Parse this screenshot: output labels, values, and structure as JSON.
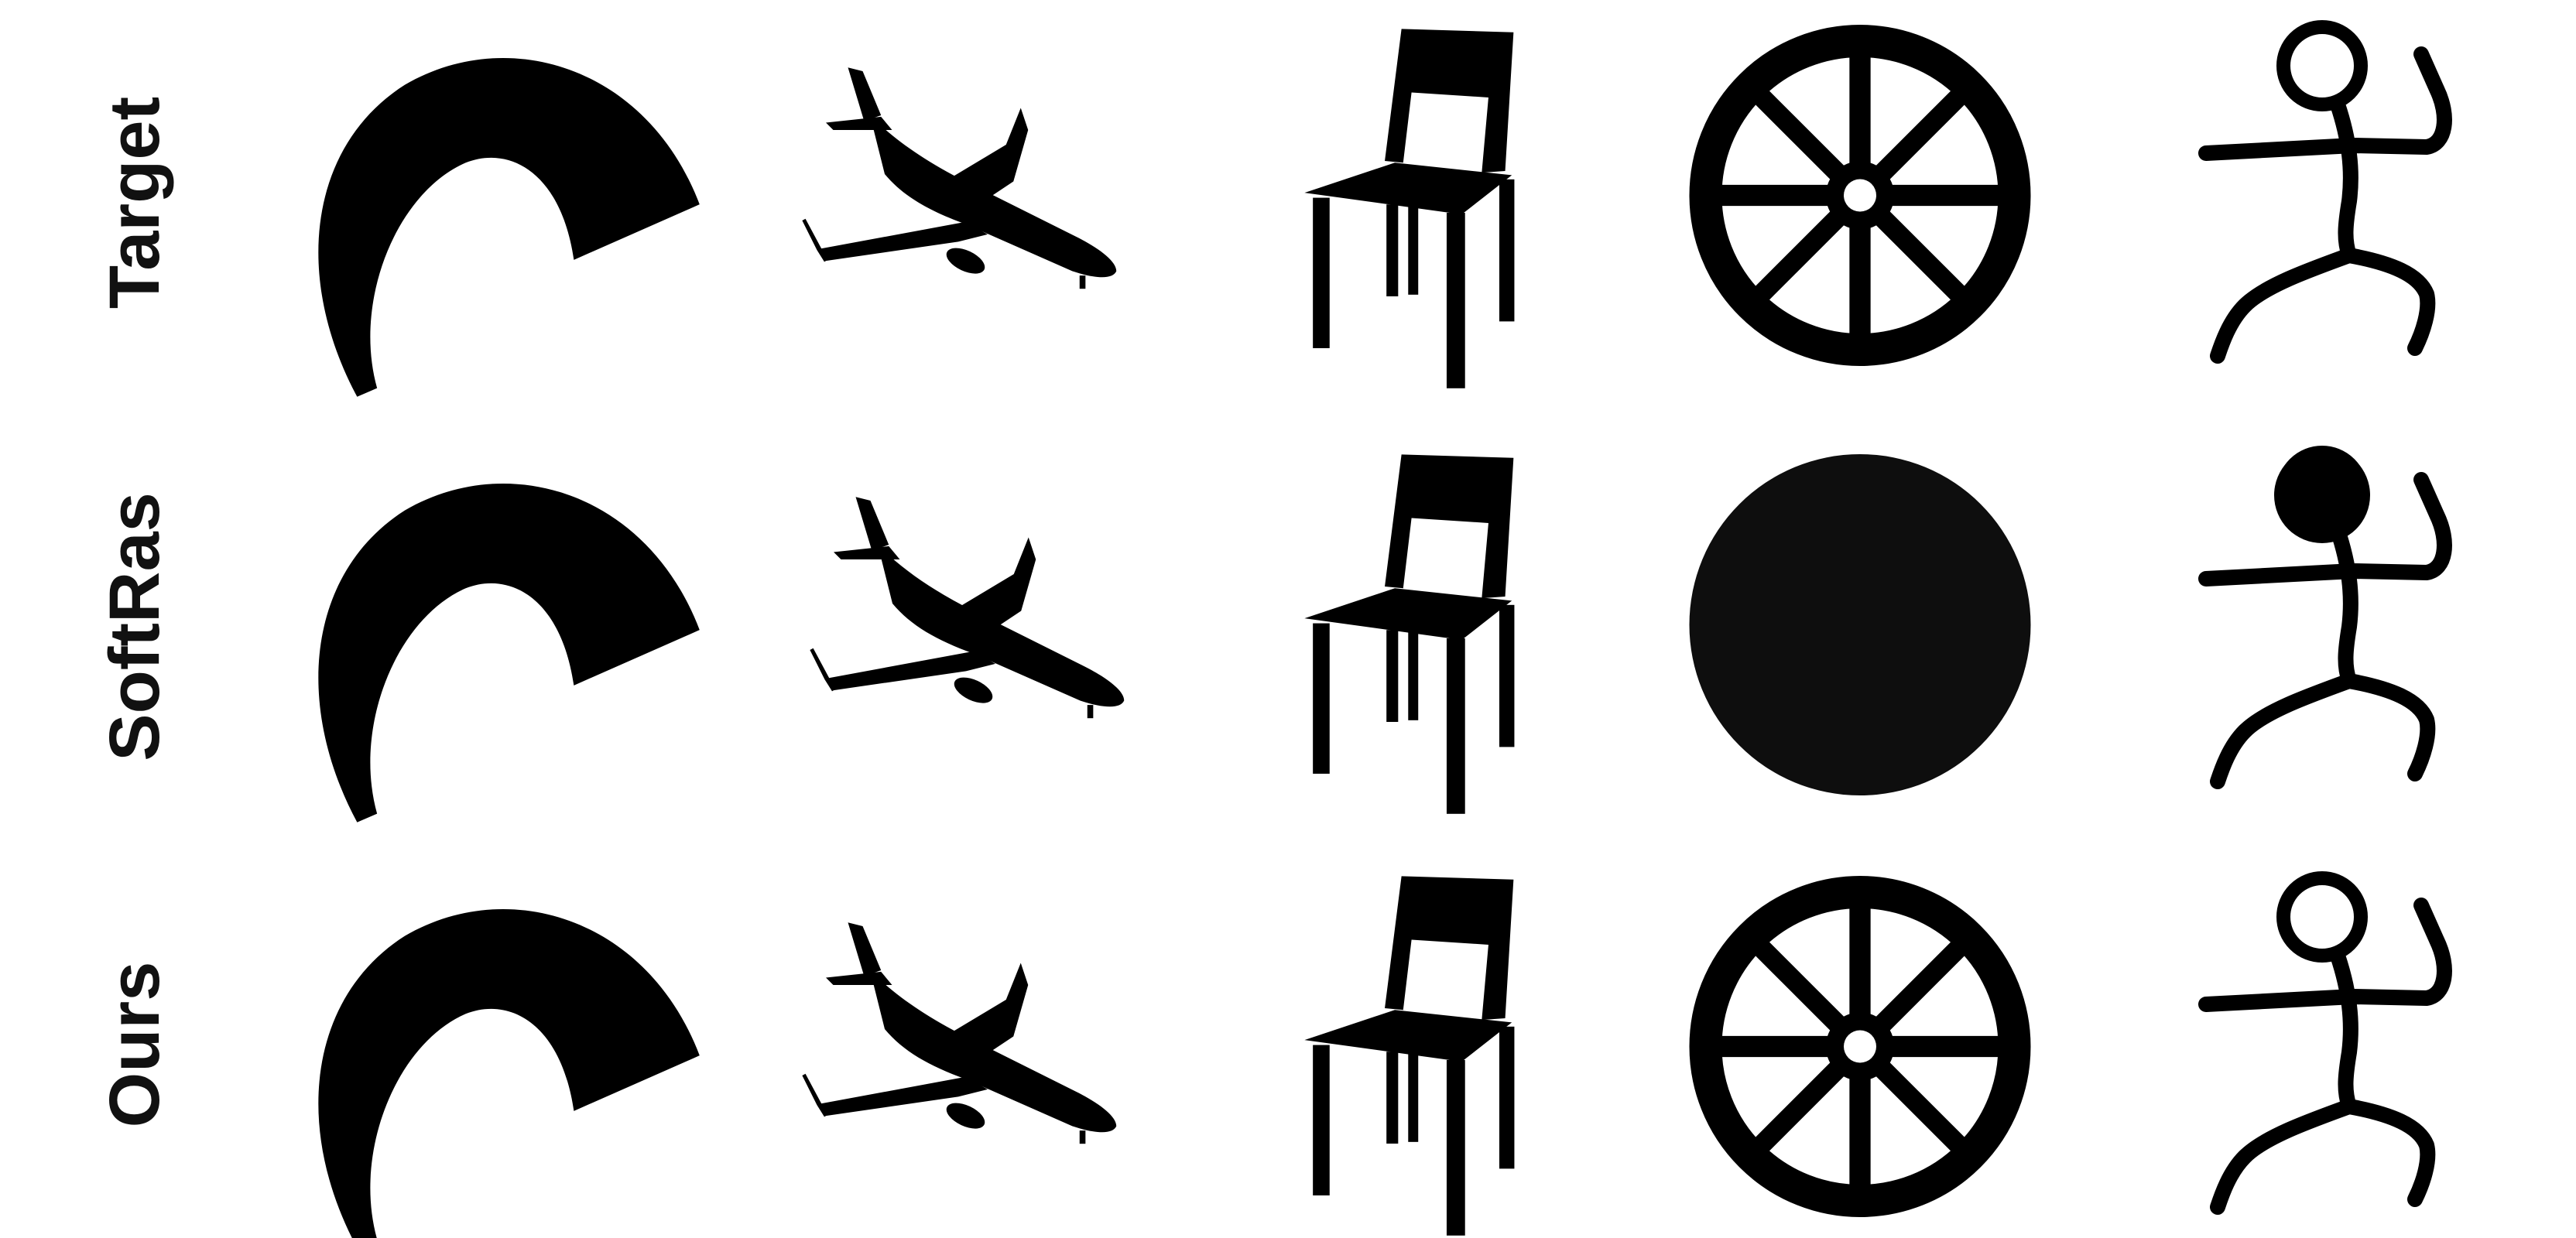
{
  "figure": {
    "rows": [
      {
        "label": "Target"
      },
      {
        "label": "SoftRas"
      },
      {
        "label": "Ours"
      }
    ],
    "columns": [
      {
        "icon": "arc-shape-icon"
      },
      {
        "icon": "airplane-icon"
      },
      {
        "icon": "chair-icon"
      },
      {
        "icon": "wheel-icon"
      },
      {
        "icon": "stick-figure-icon"
      }
    ],
    "colors": {
      "silhouette": "#000000",
      "background": "#ffffff"
    }
  }
}
